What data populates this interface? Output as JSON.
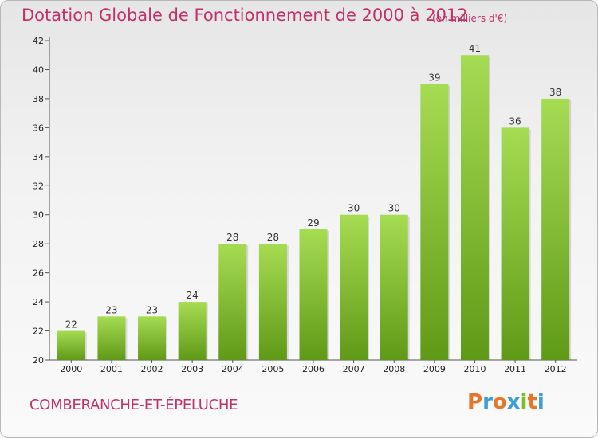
{
  "chart_data": {
    "type": "bar",
    "title": "Dotation Globale de Fonctionnement de 2000 à 2012",
    "unit_note": "(en milliers d'€)",
    "categories": [
      "2000",
      "2001",
      "2002",
      "2003",
      "2004",
      "2005",
      "2006",
      "2007",
      "2008",
      "2009",
      "2010",
      "2011",
      "2012"
    ],
    "values": [
      22,
      23,
      23,
      24,
      28,
      28,
      29,
      30,
      30,
      39,
      41,
      36,
      38
    ],
    "ylim": [
      20,
      42
    ],
    "yticks": [
      20,
      22,
      24,
      26,
      28,
      30,
      32,
      34,
      36,
      38,
      40,
      42
    ],
    "grid": false,
    "bar_color": "#7cbd2a",
    "bar_color_top": "#a6dc52"
  },
  "footer": {
    "commune": "COMBERANCHE-ET-ÉPELUCHE",
    "brand": "Proxiti"
  },
  "colors": {
    "title": "#c3306a",
    "brand_letters": [
      "#e8762a",
      "#3aa0d8",
      "#e8762a",
      "#3aa0d8",
      "#7cbd2a",
      "#e8762a",
      "#3aa0d8"
    ]
  }
}
